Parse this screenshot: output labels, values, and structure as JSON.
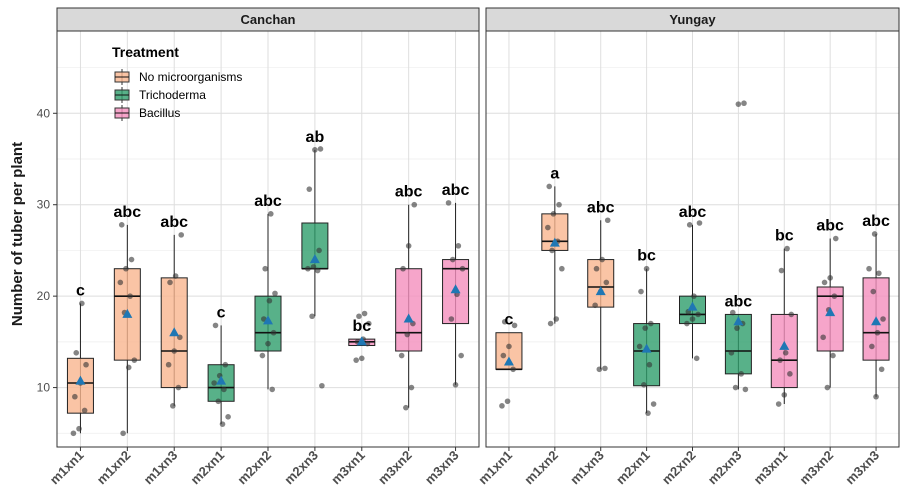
{
  "chart_data": {
    "type": "box",
    "ylabel": "Number of tuber per plant",
    "ylim": [
      3.5,
      49
    ],
    "yticks": [
      10,
      20,
      30,
      40
    ],
    "grid": true,
    "legend": {
      "title": "Treatment",
      "placement": "top-left inside first panel",
      "items": [
        {
          "label": "No microorganisms",
          "color": "#F9B58E"
        },
        {
          "label": "Trichoderma",
          "color": "#2E9E6B"
        },
        {
          "label": "Bacillus",
          "color": "#F48FBD"
        }
      ]
    },
    "mean_marker_color": "#1F77B4",
    "panels": [
      {
        "title": "Canchan",
        "categories": [
          "m1xn1",
          "m1xn2",
          "m1xn3",
          "m2xn1",
          "m2xn2",
          "m2xn3",
          "m3xn1",
          "m3xn2",
          "m3xn3"
        ],
        "groups": [
          {
            "category": "m1xn1",
            "treatment": "No microorganisms",
            "q1": 7.2,
            "median": 10.5,
            "q3": 13.2,
            "whisker_low": 5,
            "whisker_high": 19.2,
            "mean": 10.7,
            "letter": "c",
            "points": [
              5,
              5.5,
              7.5,
              9,
              10.5,
              12.5,
              13.8,
              19.2
            ]
          },
          {
            "category": "m1xn2",
            "treatment": "No microorganisms",
            "q1": 13,
            "median": 20,
            "q3": 23,
            "whisker_low": 5,
            "whisker_high": 27.8,
            "mean": 18,
            "letter": "abc",
            "points": [
              5,
              12.2,
              13,
              18.2,
              20,
              21.5,
              23,
              24,
              27.8
            ]
          },
          {
            "category": "m1xn3",
            "treatment": "No microorganisms",
            "q1": 10,
            "median": 14,
            "q3": 22,
            "whisker_low": 8,
            "whisker_high": 26.7,
            "mean": 16,
            "letter": "abc",
            "points": [
              8,
              10,
              12.5,
              14,
              15.5,
              21.5,
              22.2,
              26.7
            ]
          },
          {
            "category": "m2xn1",
            "treatment": "Trichoderma",
            "q1": 8.5,
            "median": 10,
            "q3": 12.5,
            "whisker_low": 6,
            "whisker_high": 16.8,
            "mean": 10.7,
            "letter": "c",
            "points": [
              6,
              6.8,
              8.5,
              9.8,
              10.5,
              11.3,
              12.5,
              16.8
            ]
          },
          {
            "category": "m2xn2",
            "treatment": "Trichoderma",
            "q1": 14,
            "median": 16,
            "q3": 20,
            "whisker_low": 9.8,
            "whisker_high": 29,
            "mean": 17.3,
            "letter": "abc",
            "points": [
              9.8,
              13.5,
              14.8,
              16,
              17.5,
              19.5,
              20.3,
              23,
              29
            ]
          },
          {
            "category": "m2xn3",
            "treatment": "Trichoderma",
            "q1": 23,
            "median": 23,
            "q3": 28,
            "whisker_low": 17.8,
            "whisker_high": 36,
            "mean": 24,
            "letter": "ab",
            "points": [
              10.2,
              17.8,
              22.8,
              23,
              23.2,
              25,
              31.7,
              36,
              36.1
            ]
          },
          {
            "category": "m3xn1",
            "treatment": "Bacillus",
            "q1": 14.6,
            "median": 15,
            "q3": 15.3,
            "whisker_low": 14.6,
            "whisker_high": 15.3,
            "mean": 15,
            "letter": "bc",
            "points": [
              13,
              13.2,
              14.8,
              15,
              15.3,
              17,
              17.8,
              18.1
            ]
          },
          {
            "category": "m3xn2",
            "treatment": "Bacillus",
            "q1": 14,
            "median": 16,
            "q3": 23,
            "whisker_low": 7.8,
            "whisker_high": 30,
            "mean": 17.5,
            "letter": "abc",
            "points": [
              7.8,
              10,
              13.5,
              15.8,
              17,
              23,
              25.5,
              30
            ]
          },
          {
            "category": "m3xn3",
            "treatment": "Bacillus",
            "q1": 17,
            "median": 23,
            "q3": 24,
            "whisker_low": 10.3,
            "whisker_high": 30.2,
            "mean": 20.7,
            "letter": "abc",
            "points": [
              10.3,
              13.5,
              17.5,
              20.2,
              23,
              24,
              25.5,
              30.2
            ]
          }
        ]
      },
      {
        "title": "Yungay",
        "categories": [
          "m1xn1",
          "m1xn2",
          "m1xn3",
          "m2xn1",
          "m2xn2",
          "m2xn3",
          "m3xn1",
          "m3xn2",
          "m3xn3"
        ],
        "groups": [
          {
            "category": "m1xn1",
            "treatment": "No microorganisms",
            "q1": 12,
            "median": 12,
            "q3": 16,
            "whisker_low": 12,
            "whisker_high": 16,
            "mean": 12.8,
            "letter": "c",
            "points": [
              8,
              8.5,
              12,
              13.5,
              14.5,
              16.8,
              17.2
            ]
          },
          {
            "category": "m1xn2",
            "treatment": "No microorganisms",
            "q1": 25,
            "median": 26,
            "q3": 29,
            "whisker_low": 17,
            "whisker_high": 32,
            "mean": 25.8,
            "letter": "a",
            "points": [
              17,
              17.5,
              23,
              25,
              26,
              27.5,
              29,
              30,
              32
            ]
          },
          {
            "category": "m1xn3",
            "treatment": "No microorganisms",
            "q1": 18.8,
            "median": 21,
            "q3": 24,
            "whisker_low": 12,
            "whisker_high": 28.3,
            "mean": 20.5,
            "letter": "abc",
            "points": [
              12,
              12.1,
              19,
              20.5,
              21.5,
              23,
              24,
              28.3
            ]
          },
          {
            "category": "m2xn1",
            "treatment": "Trichoderma",
            "q1": 10.2,
            "median": 14,
            "q3": 17,
            "whisker_low": 7.2,
            "whisker_high": 23,
            "mean": 14.2,
            "letter": "bc",
            "points": [
              7.2,
              8.2,
              10.3,
              12.5,
              14.5,
              16.5,
              17,
              20.5,
              23
            ]
          },
          {
            "category": "m2xn2",
            "treatment": "Trichoderma",
            "q1": 17,
            "median": 18,
            "q3": 20,
            "whisker_low": 13.2,
            "whisker_high": 27.8,
            "mean": 18.8,
            "letter": "abc",
            "points": [
              13.2,
              17,
              17.5,
              18,
              18.3,
              20,
              28,
              27.8
            ]
          },
          {
            "category": "m2xn3",
            "treatment": "Trichoderma",
            "q1": 11.5,
            "median": 14,
            "q3": 18,
            "whisker_low": 9.8,
            "whisker_high": 18,
            "mean": 17.2,
            "letter": "abc",
            "points": [
              9.8,
              10,
              11.5,
              13.8,
              16.5,
              17,
              18.2,
              41,
              41.1
            ]
          },
          {
            "category": "m3xn1",
            "treatment": "Bacillus",
            "q1": 10,
            "median": 13,
            "q3": 18,
            "whisker_low": 8.2,
            "whisker_high": 25.2,
            "mean": 14.5,
            "letter": "bc",
            "points": [
              8.2,
              9.2,
              11.5,
              13,
              13.8,
              18,
              22.8,
              25.2
            ]
          },
          {
            "category": "m3xn2",
            "treatment": "Bacillus",
            "q1": 14,
            "median": 20,
            "q3": 21,
            "whisker_low": 10,
            "whisker_high": 26.3,
            "mean": 18.2,
            "letter": "abc",
            "points": [
              10,
              13.5,
              15.5,
              18.5,
              20,
              21.5,
              22,
              26.3
            ]
          },
          {
            "category": "m3xn3",
            "treatment": "Bacillus",
            "q1": 13,
            "median": 16,
            "q3": 22,
            "whisker_low": 9,
            "whisker_high": 26.8,
            "mean": 17.2,
            "letter": "abc",
            "points": [
              9,
              12,
              14.5,
              16,
              17.5,
              20.5,
              22.5,
              23,
              26.8
            ]
          }
        ]
      }
    ]
  }
}
